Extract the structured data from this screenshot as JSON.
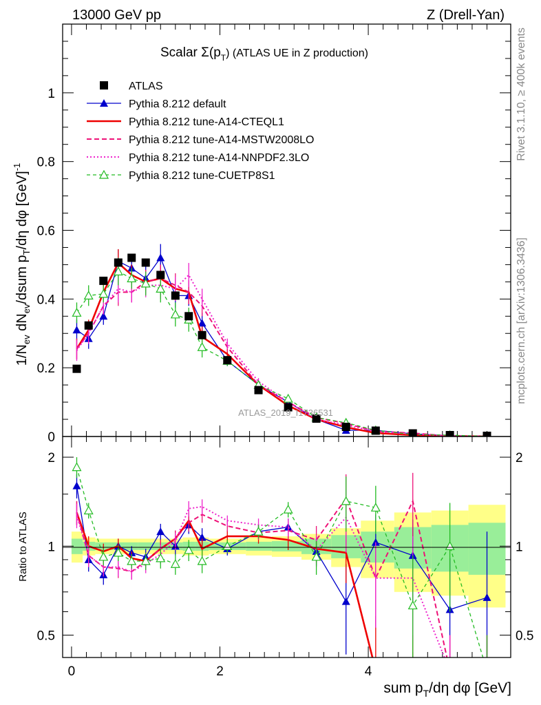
{
  "header": {
    "energy_label": "13000 GeV pp",
    "process_label": "Z (Drell-Yan)",
    "title_prefix": "Scalar Σ(p",
    "title_sub": "T",
    "title_suffix": ") (ATLAS UE in Z production)",
    "side_rivet": "Rivet 3.1.10, ≥ 400k events",
    "side_mcplots": "mcplots.cern.ch [arXiv:1306.3436]",
    "watermark": "ATLAS_2019_I1736531"
  },
  "axes": {
    "ylabel_main": "1/N_ev dN_ev/dsum p_T/dη dφ [GeV]^-1",
    "ylabel_ratio": "Ratio to ATLAS",
    "xlabel": "sum p_T/dη dφ [GeV]",
    "main_yticks": [
      "0",
      "0.2",
      "0.4",
      "0.6",
      "0.8",
      "1"
    ],
    "ratio_yticks": [
      "0.5",
      "1",
      "2"
    ],
    "xticks": [
      "0",
      "2",
      "4"
    ]
  },
  "colors": {
    "atlas": "#000000",
    "default": "#0000cc",
    "cteql1": "#ee0000",
    "mstw": "#ee1177",
    "nnpdf": "#ee22cc",
    "cuetp8s1": "#22bb22",
    "band_outer": "#ffff88",
    "band_inner": "#99ee99"
  },
  "chart_data": {
    "type": "scatter",
    "title": "Scalar Σ(pT) (ATLAS UE in Z production)",
    "xlabel": "sum pT/dη dφ [GeV]",
    "ylabel": "1/Nev dNev/dsum pT/dη dφ [GeV]^-1",
    "xlim": [
      -0.12,
      5.92
    ],
    "ylim": [
      0,
      1.2
    ],
    "ratio_ylim_log": [
      0.42,
      2.35
    ],
    "x": [
      0.07,
      0.23,
      0.43,
      0.63,
      0.81,
      1.0,
      1.2,
      1.4,
      1.58,
      1.76,
      2.1,
      2.52,
      2.92,
      3.3,
      3.7,
      4.1,
      4.6,
      5.1,
      5.6
    ],
    "series": [
      {
        "name": "ATLAS",
        "key": "atlas",
        "style": "data",
        "values": [
          0.197,
          0.323,
          0.453,
          0.506,
          0.52,
          0.506,
          0.47,
          0.41,
          0.35,
          0.295,
          0.222,
          0.135,
          0.085,
          0.052,
          0.028,
          0.017,
          0.009,
          0.004,
          0.002
        ]
      },
      {
        "name": "Pythia 8.212 default",
        "key": "default",
        "style": "solid",
        "marker": "tri",
        "values": [
          0.31,
          0.285,
          0.35,
          0.51,
          0.49,
          0.46,
          0.52,
          0.41,
          0.41,
          0.33,
          0.22,
          0.15,
          0.1,
          0.05,
          0.018,
          0.018,
          0.008,
          0.0025,
          0.0013
        ],
        "errors": [
          0.03,
          0.03,
          0.025,
          0.035,
          0.03,
          0.035,
          0.04,
          0.035,
          0.03,
          0.03,
          0.015,
          0.01,
          0.01,
          0.006,
          0.005,
          0.004,
          0.003,
          0.001,
          0.001
        ],
        "ratio": [
          1.6,
          0.9,
          0.8,
          1.0,
          0.95,
          0.92,
          1.12,
          1.0,
          1.18,
          1.07,
          0.98,
          1.12,
          1.16,
          0.96,
          0.65,
          1.03,
          0.93,
          0.61,
          0.67
        ],
        "ratio_err": [
          0.15,
          0.08,
          0.06,
          0.06,
          0.05,
          0.06,
          0.07,
          0.07,
          0.08,
          0.08,
          0.05,
          0.06,
          0.08,
          0.1,
          0.22,
          0.25,
          0.3,
          0.3,
          0.45
        ]
      },
      {
        "name": "Pythia 8.212 tune-A14-CTEQL1",
        "key": "cteql1",
        "style": "solid",
        "thick": true,
        "values": [
          0.255,
          0.31,
          0.42,
          0.505,
          0.47,
          0.45,
          0.46,
          0.43,
          0.42,
          0.29,
          0.24,
          0.15,
          0.09,
          0.05,
          0.027,
          0.01,
          0.004,
          0.001,
          0.0003
        ],
        "errors": [
          0.03,
          0.03,
          0.025,
          0.04,
          0.03,
          0.035,
          0.04,
          0.035,
          0.035,
          0.03,
          0.015,
          0.01,
          0.01,
          0.006,
          0.005,
          0.004,
          0.003,
          0.001,
          0.001
        ],
        "ratio": [
          1.3,
          1.0,
          0.96,
          1.0,
          0.91,
          0.89,
          0.98,
          1.06,
          1.22,
          0.98,
          1.08,
          1.08,
          1.05,
          0.98,
          0.95,
          0.38,
          0.3,
          0.3,
          0.3
        ],
        "ratio_err": [
          0.12,
          0.08,
          0.06,
          0.06,
          0.05,
          0.06,
          0.07,
          0.07,
          0.08,
          0.08,
          0.05,
          0.06,
          0.08,
          0.1,
          0.2,
          0.2,
          0.2,
          0.2,
          0.2
        ]
      },
      {
        "name": "Pythia 8.212 tune-A14-MSTW2008LO",
        "key": "mstw",
        "style": "dashed",
        "values": [
          0.255,
          0.3,
          0.38,
          0.42,
          0.42,
          0.45,
          0.46,
          0.44,
          0.42,
          0.38,
          0.26,
          0.15,
          0.1,
          0.055,
          0.038,
          0.015,
          0.01,
          0.001,
          0.0003
        ],
        "errors": [
          0.03,
          0.03,
          0.025,
          0.04,
          0.03,
          0.035,
          0.04,
          0.035,
          0.035,
          0.03,
          0.015,
          0.01,
          0.01,
          0.006,
          0.005,
          0.004,
          0.003,
          0.001,
          0.001
        ],
        "ratio": [
          1.3,
          0.93,
          0.85,
          0.84,
          0.82,
          0.89,
          0.98,
          1.06,
          1.2,
          1.28,
          1.17,
          1.11,
          1.13,
          1.05,
          1.45,
          0.78,
          1.42,
          0.3,
          0.3
        ],
        "ratio_err": [
          0.12,
          0.08,
          0.06,
          0.06,
          0.05,
          0.06,
          0.07,
          0.07,
          0.08,
          0.08,
          0.05,
          0.06,
          0.08,
          0.12,
          0.3,
          0.25,
          0.35,
          0.2,
          0.2
        ]
      },
      {
        "name": "Pythia 8.212 tune-A14-NNPDF2.3LO",
        "key": "nnpdf",
        "style": "dotted",
        "values": [
          0.25,
          0.3,
          0.38,
          0.43,
          0.42,
          0.44,
          0.44,
          0.43,
          0.47,
          0.4,
          0.27,
          0.16,
          0.1,
          0.05,
          0.033,
          0.015,
          0.007,
          0.002,
          0.0005
        ],
        "errors": [
          0.03,
          0.03,
          0.025,
          0.04,
          0.03,
          0.035,
          0.04,
          0.035,
          0.035,
          0.03,
          0.015,
          0.01,
          0.01,
          0.006,
          0.005,
          0.004,
          0.003,
          0.001,
          0.001
        ],
        "ratio": [
          1.27,
          0.93,
          0.85,
          0.85,
          0.82,
          0.87,
          0.94,
          1.04,
          1.34,
          1.36,
          1.22,
          1.18,
          1.16,
          0.97,
          1.25,
          0.78,
          0.78,
          0.3,
          0.3
        ],
        "ratio_err": [
          0.12,
          0.08,
          0.06,
          0.06,
          0.05,
          0.06,
          0.07,
          0.07,
          0.08,
          0.08,
          0.05,
          0.06,
          0.08,
          0.12,
          0.3,
          0.25,
          0.3,
          0.2,
          0.2
        ]
      },
      {
        "name": "Pythia 8.212 tune-CUETP8S1",
        "key": "cuetp8s1",
        "style": "dashed",
        "marker": "opentri",
        "values": [
          0.36,
          0.41,
          0.415,
          0.48,
          0.46,
          0.445,
          0.43,
          0.355,
          0.34,
          0.26,
          0.22,
          0.15,
          0.11,
          0.055,
          0.04,
          0.018,
          0.0057,
          0.004,
          0.0005
        ],
        "errors": [
          0.03,
          0.03,
          0.025,
          0.04,
          0.03,
          0.035,
          0.04,
          0.035,
          0.035,
          0.03,
          0.015,
          0.01,
          0.01,
          0.006,
          0.005,
          0.004,
          0.003,
          0.001,
          0.001
        ],
        "ratio": [
          1.85,
          1.32,
          0.92,
          0.95,
          0.89,
          0.89,
          0.91,
          0.87,
          0.97,
          0.89,
          1.0,
          1.12,
          1.33,
          0.92,
          1.42,
          1.35,
          0.63,
          1.0,
          0.3
        ],
        "ratio_err": [
          0.15,
          0.08,
          0.06,
          0.06,
          0.05,
          0.06,
          0.07,
          0.07,
          0.08,
          0.08,
          0.05,
          0.06,
          0.08,
          0.12,
          0.3,
          0.25,
          0.3,
          0.4,
          0.2
        ]
      }
    ],
    "ratio_bands": {
      "edges": [
        0.0,
        0.15,
        0.32,
        0.53,
        0.72,
        0.9,
        1.1,
        1.3,
        1.5,
        1.67,
        1.85,
        2.35,
        2.7,
        3.1,
        3.5,
        3.9,
        4.35,
        4.85,
        5.35,
        5.85
      ],
      "outer": [
        0.12,
        0.07,
        0.06,
        0.06,
        0.06,
        0.06,
        0.06,
        0.06,
        0.07,
        0.07,
        0.06,
        0.07,
        0.08,
        0.1,
        0.15,
        0.22,
        0.3,
        0.32,
        0.38
      ],
      "inner": [
        0.06,
        0.035,
        0.03,
        0.03,
        0.03,
        0.03,
        0.03,
        0.03,
        0.035,
        0.035,
        0.03,
        0.035,
        0.04,
        0.06,
        0.09,
        0.12,
        0.16,
        0.18,
        0.2
      ]
    }
  }
}
